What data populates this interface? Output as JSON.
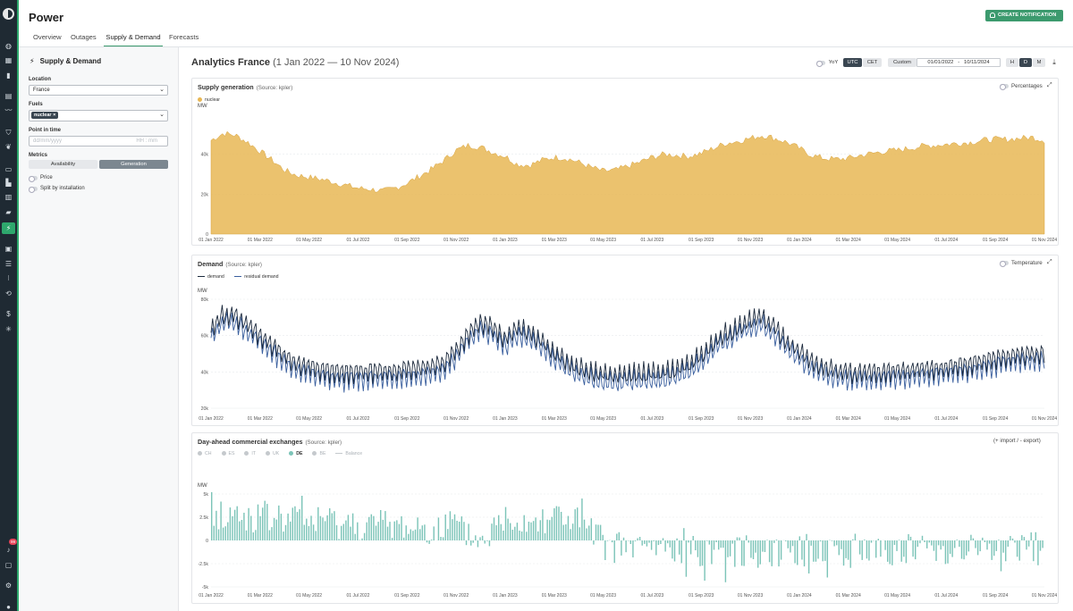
{
  "app": {
    "title": "Power",
    "create_btn": "CREATE NOTIFICATION"
  },
  "tabs": [
    {
      "label": "Overview"
    },
    {
      "label": "Outages"
    },
    {
      "label": "Supply & Demand",
      "active": true
    },
    {
      "label": "Forecasts"
    }
  ],
  "rail_icons": [
    "logo-icon",
    "globe-icon",
    "grid-icon",
    "bookmark-icon",
    "news-icon",
    "chart-line-icon",
    "shield-icon",
    "leaf-icon",
    "doc-icon",
    "factory-icon",
    "bar-chart-icon",
    "truck-icon",
    "bolt-icon",
    "building-icon",
    "list-icon",
    "tasks-icon",
    "refresh-icon",
    "dollar-icon",
    "snowflake-icon",
    "bell-icon",
    "chat-icon",
    "settings-icon",
    "user-icon"
  ],
  "notification_count": "99",
  "sidebar": {
    "title": "Supply & Demand",
    "location_label": "Location",
    "location_value": "France",
    "fuels_label": "Fuels",
    "fuels_chip": "nuclear",
    "point_label": "Point in time",
    "point_placeholder_date": "dd/mm/yyyy",
    "point_placeholder_time": "HH : mm",
    "metrics_label": "Metrics",
    "metric_availability": "Availability",
    "metric_generation": "Generation",
    "price_label": "Price",
    "split_label": "Split by installation"
  },
  "main": {
    "title": "Analytics France",
    "range": "(1 Jan 2022 — 10 Nov 2024)",
    "yoy": "YoY",
    "utc": "UTC",
    "cet": "CET",
    "custom": "Custom",
    "date_from": "01/01/2022",
    "date_sep": "-",
    "date_to": "10/11/2024",
    "gran_h": "H",
    "gran_d": "D",
    "gran_m": "M"
  },
  "colors": {
    "accent": "#3c9a6e",
    "nuclear": "#e8b755",
    "demand": "#1c2a3d",
    "residual": "#3a5f9e",
    "exchange": "#7cc4b8"
  },
  "chart_data": [
    {
      "type": "area",
      "title": "Supply generation",
      "source": "(Source: kpler)",
      "toggle_label": "Percentages",
      "ylabel": "MW",
      "ylim": [
        0,
        60000
      ],
      "yticks": [
        "0",
        "20k",
        "40k"
      ],
      "series": [
        {
          "name": "nuclear",
          "color": "#e8b755"
        }
      ],
      "xticks": [
        "01 Jan 2022",
        "01 Mar 2022",
        "01 May 2022",
        "01 Jul 2022",
        "01 Sep 2022",
        "01 Nov 2022",
        "01 Jan 2023",
        "01 Mar 2023",
        "01 May 2023",
        "01 Jul 2023",
        "01 Sep 2023",
        "01 Nov 2023",
        "01 Jan 2024",
        "01 Mar 2024",
        "01 May 2024",
        "01 Jul 2024",
        "01 Sep 2024",
        "01 Nov 2024"
      ],
      "profile": [
        [
          0,
          47000
        ],
        [
          0.5,
          50500
        ],
        [
          1,
          49500
        ],
        [
          1.5,
          46000
        ],
        [
          2,
          41500
        ],
        [
          2.5,
          37000
        ],
        [
          3,
          32000
        ],
        [
          3.5,
          29500
        ],
        [
          4,
          28500
        ],
        [
          4.5,
          27500
        ],
        [
          5,
          26000
        ],
        [
          5.5,
          24500
        ],
        [
          6,
          23000
        ],
        [
          6.5,
          22500
        ],
        [
          7,
          21500
        ],
        [
          7.5,
          23000
        ],
        [
          8,
          25500
        ],
        [
          8.5,
          29000
        ],
        [
          9,
          32500
        ],
        [
          9.5,
          37000
        ],
        [
          10,
          42000
        ],
        [
          10.5,
          44500
        ],
        [
          11,
          43500
        ],
        [
          11.5,
          41000
        ],
        [
          12,
          39000
        ],
        [
          12.5,
          35000
        ],
        [
          13,
          34500
        ],
        [
          13.5,
          37000
        ],
        [
          14,
          38500
        ],
        [
          14.5,
          38000
        ],
        [
          15,
          36000
        ],
        [
          15.5,
          33500
        ],
        [
          16,
          31500
        ],
        [
          16.5,
          32000
        ],
        [
          17,
          34000
        ],
        [
          17.5,
          36000
        ],
        [
          18,
          38500
        ],
        [
          18.5,
          40000
        ],
        [
          19,
          39500
        ],
        [
          19.5,
          39000
        ],
        [
          20,
          40500
        ],
        [
          20.5,
          43000
        ],
        [
          21,
          45500
        ],
        [
          21.5,
          46500
        ],
        [
          22,
          48000
        ],
        [
          22.5,
          49500
        ],
        [
          23,
          48000
        ],
        [
          23.5,
          46000
        ],
        [
          24,
          43000
        ],
        [
          24.5,
          39500
        ],
        [
          25,
          38000
        ],
        [
          25.5,
          37500
        ],
        [
          26,
          38000
        ],
        [
          26.5,
          39500
        ],
        [
          27,
          40500
        ],
        [
          27.5,
          41500
        ],
        [
          28,
          42000
        ],
        [
          28.5,
          43000
        ],
        [
          29,
          44000
        ],
        [
          29.5,
          44500
        ],
        [
          30,
          45000
        ],
        [
          30.5,
          45500
        ],
        [
          31,
          46000
        ],
        [
          31.5,
          47000
        ],
        [
          32,
          47500
        ],
        [
          32.5,
          47500
        ],
        [
          33,
          48000
        ],
        [
          33.5,
          48500
        ],
        [
          34,
          47000
        ]
      ]
    },
    {
      "type": "line",
      "title": "Demand",
      "source": "(Source: kpler)",
      "toggle_label": "Temperature",
      "ylabel": "MW",
      "ylim": [
        20000,
        80000
      ],
      "yticks": [
        "20k",
        "40k",
        "60k",
        "80k"
      ],
      "series": [
        {
          "name": "demand",
          "color": "#1c2a3d"
        },
        {
          "name": "residual demand",
          "color": "#3a5f9e"
        }
      ],
      "xticks": [
        "01 Jan 2022",
        "01 Mar 2022",
        "01 May 2022",
        "01 Jul 2022",
        "01 Sep 2022",
        "01 Nov 2022",
        "01 Jan 2023",
        "01 Mar 2023",
        "01 May 2023",
        "01 Jul 2023",
        "01 Sep 2023",
        "01 Nov 2023",
        "01 Jan 2024",
        "01 Mar 2024",
        "01 May 2024",
        "01 Jul 2024",
        "01 Sep 2024",
        "01 Nov 2024"
      ],
      "profile": [
        [
          0,
          62000
        ],
        [
          0.5,
          72000
        ],
        [
          1,
          71000
        ],
        [
          1.5,
          66000
        ],
        [
          2,
          60000
        ],
        [
          2.5,
          55000
        ],
        [
          3,
          49000
        ],
        [
          3.5,
          45000
        ],
        [
          4,
          43000
        ],
        [
          4.5,
          41000
        ],
        [
          5,
          40000
        ],
        [
          5.5,
          39500
        ],
        [
          6,
          40000
        ],
        [
          6.5,
          40500
        ],
        [
          7,
          40000
        ],
        [
          7.5,
          41000
        ],
        [
          8,
          41500
        ],
        [
          8.5,
          42000
        ],
        [
          9,
          43000
        ],
        [
          9.5,
          45500
        ],
        [
          10,
          52000
        ],
        [
          10.5,
          61000
        ],
        [
          11,
          67000
        ],
        [
          11.5,
          64000
        ],
        [
          12,
          58000
        ],
        [
          12.5,
          64000
        ],
        [
          13,
          62000
        ],
        [
          13.5,
          57000
        ],
        [
          14,
          51000
        ],
        [
          14.5,
          46000
        ],
        [
          15,
          42000
        ],
        [
          15.5,
          40000
        ],
        [
          16,
          39000
        ],
        [
          16.5,
          38000
        ],
        [
          17,
          38500
        ],
        [
          17.5,
          39000
        ],
        [
          18,
          39000
        ],
        [
          18.5,
          40000
        ],
        [
          19,
          41500
        ],
        [
          19.5,
          44000
        ],
        [
          20,
          49000
        ],
        [
          20.5,
          56000
        ],
        [
          21,
          61000
        ],
        [
          21.5,
          64000
        ],
        [
          22,
          68000
        ],
        [
          22.5,
          70000
        ],
        [
          23,
          64000
        ],
        [
          23.5,
          57000
        ],
        [
          24,
          51000
        ],
        [
          24.5,
          46000
        ],
        [
          25,
          42500
        ],
        [
          25.5,
          41000
        ],
        [
          26,
          40000
        ],
        [
          26.5,
          39500
        ],
        [
          27,
          39500
        ],
        [
          27.5,
          40000
        ],
        [
          28,
          40500
        ],
        [
          28.5,
          41000
        ],
        [
          29,
          41500
        ],
        [
          29.5,
          42000
        ],
        [
          30,
          42500
        ],
        [
          30.5,
          43500
        ],
        [
          31,
          44500
        ],
        [
          31.5,
          46000
        ],
        [
          32,
          47500
        ],
        [
          32.5,
          48500
        ],
        [
          33,
          49500
        ],
        [
          33.5,
          50000
        ],
        [
          34,
          50500
        ]
      ]
    },
    {
      "type": "bar",
      "title": "Day-ahead commercial exchanges",
      "source": "(Source: kpler)",
      "right_label": "(+ import / - export)",
      "ylabel": "MW",
      "ylim": [
        -5000,
        5000
      ],
      "yticks": [
        "-5k",
        "-2.5k",
        "0",
        "2.5k",
        "5k"
      ],
      "series": [
        {
          "name": "CH",
          "color": "#c5c9cd"
        },
        {
          "name": "ES",
          "color": "#c5c9cd"
        },
        {
          "name": "IT",
          "color": "#c5c9cd"
        },
        {
          "name": "UK",
          "color": "#c5c9cd"
        },
        {
          "name": "DE",
          "color": "#7cc4b8",
          "active": true
        },
        {
          "name": "BE",
          "color": "#c5c9cd"
        },
        {
          "name": "Balance",
          "color": "#c5c9cd"
        }
      ],
      "xticks": [
        "01 Jan 2022",
        "01 Mar 2022",
        "01 May 2022",
        "01 Jul 2022",
        "01 Sep 2022",
        "01 Nov 2022",
        "01 Jan 2023",
        "01 Mar 2023",
        "01 May 2023",
        "01 Jul 2023",
        "01 Sep 2023",
        "01 Nov 2023",
        "01 Jan 2024",
        "01 Mar 2024",
        "01 May 2024",
        "01 Jul 2024",
        "01 Sep 2024",
        "01 Nov 2024"
      ],
      "profile": [
        [
          0,
          2800
        ],
        [
          2,
          2500
        ],
        [
          4,
          2200
        ],
        [
          6,
          1800
        ],
        [
          8,
          1500
        ],
        [
          10,
          1200
        ],
        [
          11,
          -200
        ],
        [
          12,
          2600
        ],
        [
          13,
          2200
        ],
        [
          14,
          2800
        ],
        [
          15,
          2000
        ],
        [
          16,
          -600
        ],
        [
          17,
          -800
        ],
        [
          18,
          -900
        ],
        [
          19,
          -1000
        ],
        [
          20,
          -1000
        ],
        [
          21,
          -1100
        ],
        [
          22,
          -1200
        ],
        [
          23,
          -1000
        ],
        [
          24,
          -1100
        ],
        [
          26,
          -1000
        ],
        [
          28,
          -1000
        ],
        [
          30,
          -900
        ],
        [
          32,
          -900
        ],
        [
          34,
          -900
        ]
      ]
    }
  ]
}
